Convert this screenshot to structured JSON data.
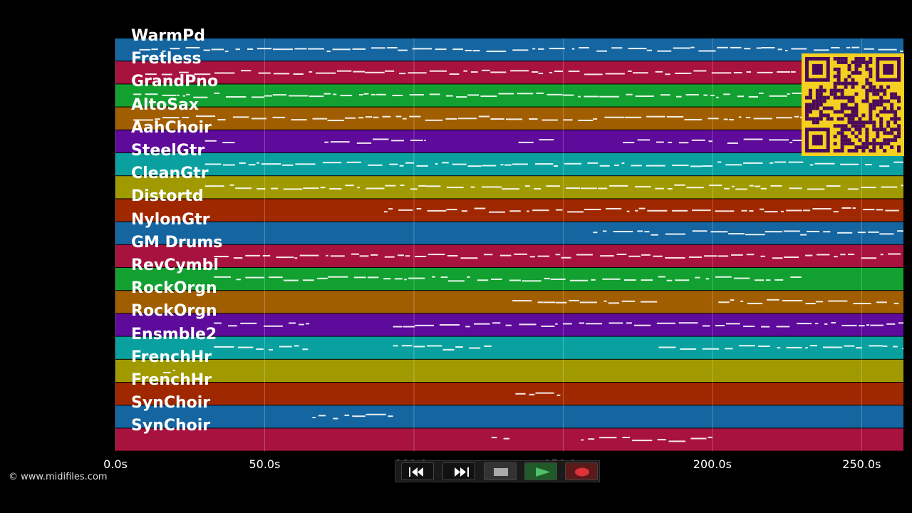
{
  "tracks": [
    {
      "name": "WarmPd",
      "color": "#1565a0"
    },
    {
      "name": "Fretless",
      "color": "#a8123e"
    },
    {
      "name": "GrandPno",
      "color": "#12a030"
    },
    {
      "name": "AltoSax",
      "color": "#a05e00"
    },
    {
      "name": "AahChoir",
      "color": "#5e0a9a"
    },
    {
      "name": "SteelGtr",
      "color": "#0aa0a0"
    },
    {
      "name": "CleanGtr",
      "color": "#a09a00"
    },
    {
      "name": "Distortd",
      "color": "#a02800"
    },
    {
      "name": "NylonGtr",
      "color": "#1565a0"
    },
    {
      "name": "GM Drums",
      "color": "#a8123e"
    },
    {
      "name": "RevCymbl",
      "color": "#12a030"
    },
    {
      "name": "RockOrgn",
      "color": "#a05e00"
    },
    {
      "name": "RockOrgn",
      "color": "#5e0a9a"
    },
    {
      "name": "Ensmble2",
      "color": "#0aa0a0"
    },
    {
      "name": "FrenchHr",
      "color": "#a09a00"
    },
    {
      "name": "FrenchHr",
      "color": "#a02800"
    },
    {
      "name": "SynChoir",
      "color": "#1565a0"
    },
    {
      "name": "SynChoir",
      "color": "#a8123e"
    }
  ],
  "extra_lanes": 0,
  "timeline": {
    "unit": "s",
    "max": 264,
    "ticks": [
      "0.0s",
      "50.0s",
      "100.0s",
      "150.0s",
      "200.0s",
      "250.0s"
    ],
    "tick_values": [
      0,
      50,
      100,
      150,
      200,
      250
    ]
  },
  "copyright": "© www.midifiles.com",
  "transport": {
    "buttons": [
      {
        "name": "rewind-button",
        "icon": "rewind-icon"
      },
      {
        "name": "fast-forward-button",
        "icon": "fast-forward-icon"
      },
      {
        "name": "stop-button",
        "icon": "stop-icon"
      },
      {
        "name": "play-button",
        "icon": "play-icon"
      },
      {
        "name": "record-button",
        "icon": "record-icon"
      }
    ]
  },
  "colors": {
    "background": "#000000",
    "qr_background": "#f5d020",
    "qr_foreground": "#4a0a5a",
    "play": "#2e8b3a",
    "record": "#d0303a"
  }
}
